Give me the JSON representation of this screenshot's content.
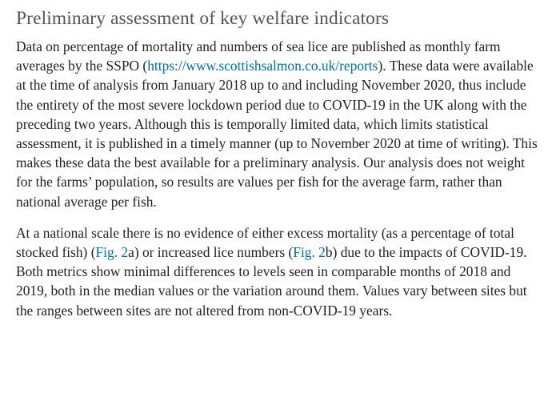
{
  "section": {
    "title": "Preliminary assessment of key welfare indicators"
  },
  "paragraph1": {
    "text_before_link": "Data on percentage of mortality and numbers of sea lice are published as monthly farm averages by the SSPO (",
    "link_text": "https://www.scottishsalmon.co.uk/reports",
    "text_after_link": "). These data were available at the time of analysis from January 2018 up to and including November 2020, thus include the entirety of the most severe lockdown period due to COVID-19 in the UK along with the preceding two years. Although this is temporally limited data, which limits statistical assessment, it is published in a timely manner (up to November 2020 at time of writing). This makes these data the best available for a preliminary analysis. Our analysis does not weight for the farms’ population, so results are values per fish for the average farm, rather than national average per fish."
  },
  "paragraph2": {
    "text_1": "At a national scale there is no evidence of either excess mortality (as a percentage of total stocked fish) (",
    "fig_link_a": "Fig. 2",
    "text_2": "a) or increased lice numbers (",
    "fig_link_b": "Fig. 2",
    "text_3": "b) due to the impacts of COVID-19. Both metrics show minimal differences to levels seen in comparable months of 2018 and 2019, both in the median values or the variation around them. Values vary between sites but the ranges between sites are not altered from non-COVID-19 years."
  },
  "colors": {
    "link": "#006f9f",
    "title": "#555555",
    "body_text": "#222222"
  }
}
